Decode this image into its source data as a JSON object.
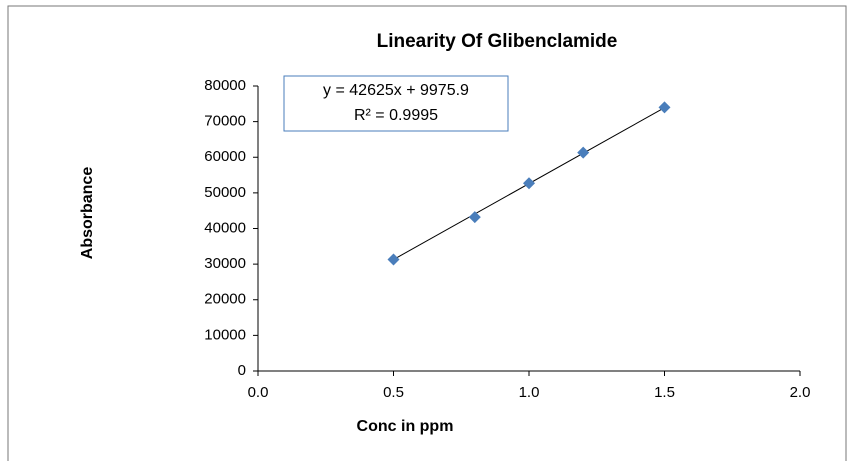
{
  "chart_data": {
    "type": "scatter",
    "title": "Linearity Of Glibenclamide",
    "x_label": "Conc in ppm",
    "y_label": "Absorbance",
    "series": [
      {
        "name": "Absorbance",
        "color": "#4a7ebb",
        "x": [
          0.5,
          0.8,
          1.0,
          1.2,
          1.5
        ],
        "values": [
          31300,
          43200,
          52700,
          61300,
          74000
        ]
      }
    ],
    "trendline": {
      "slope": 42625,
      "intercept": 9975.9,
      "color": "#000000",
      "equation": "y = 42625x + 9975.9",
      "r2": "R² = 0.9995"
    },
    "xlim": [
      0,
      2
    ],
    "ylim": [
      0,
      80000
    ],
    "xticks": [
      {
        "value": 0,
        "label": "0.0"
      },
      {
        "value": 0.5,
        "label": "0.5"
      },
      {
        "value": 1,
        "label": "1.0"
      },
      {
        "value": 1.5,
        "label": "1.5"
      },
      {
        "value": 2,
        "label": "2.0"
      }
    ],
    "yticks": [
      0,
      10000,
      20000,
      30000,
      40000,
      50000,
      60000,
      70000,
      80000
    ],
    "grid": false
  }
}
